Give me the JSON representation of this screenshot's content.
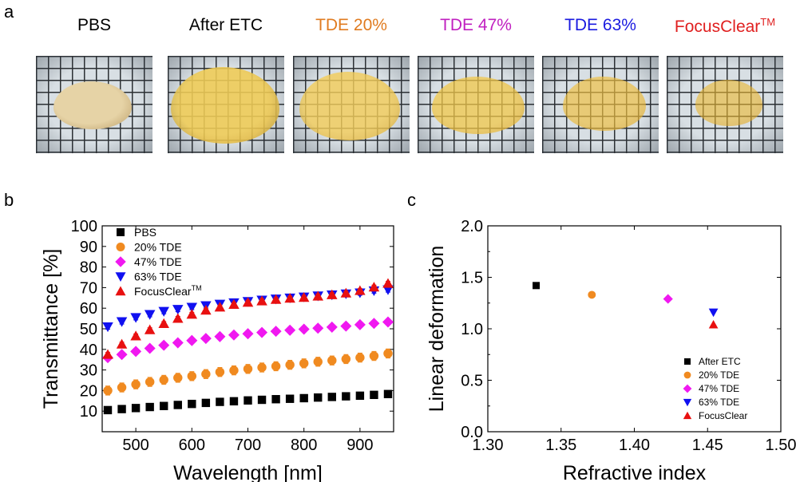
{
  "panels": {
    "a": "a",
    "b": "b",
    "c": "c"
  },
  "photos": [
    {
      "label": "PBS",
      "label_color": "#000000",
      "brain_color": "#e6d3a6",
      "brain_edge": "#b89a64"
    },
    {
      "label": "After ETC",
      "label_color": "#000000",
      "brain_color": "#f0cc55",
      "brain_edge": "#d4a530"
    },
    {
      "label": "TDE 20%",
      "label_color": "#e07b20",
      "brain_color": "#f3cd5a",
      "brain_edge": "#d9a935"
    },
    {
      "label": "TDE 47%",
      "label_color": "#c020c0",
      "brain_color": "#f2c848",
      "brain_edge": "#dca528"
    },
    {
      "label": "TDE 63%",
      "label_color": "#1a1ae0",
      "brain_color": "#f0c040",
      "brain_edge": "#daa020"
    },
    {
      "label": "FocusClear",
      "label_sup": "TM",
      "label_color": "#e02020",
      "brain_color": "#ecb830",
      "brain_edge": "#d99a18"
    }
  ],
  "chart_data": [
    {
      "type": "scatter",
      "xlabel": "Wavelength [nm]",
      "ylabel": "Transmittance [%]",
      "xlim": [
        440,
        960
      ],
      "ylim": [
        0,
        100
      ],
      "xticks": [
        500,
        600,
        700,
        800,
        900
      ],
      "yticks": [
        10,
        20,
        30,
        40,
        50,
        60,
        70,
        80,
        90,
        100
      ],
      "legend_position": "top-left",
      "x": [
        450,
        475,
        500,
        525,
        550,
        575,
        600,
        625,
        650,
        675,
        700,
        725,
        750,
        775,
        800,
        825,
        850,
        875,
        900,
        925,
        950
      ],
      "series": [
        {
          "name": "PBS",
          "color": "#000000",
          "marker": "square",
          "values": [
            10.5,
            11.0,
            11.5,
            12.0,
            12.5,
            13.0,
            13.5,
            14.0,
            14.5,
            14.8,
            15.2,
            15.5,
            15.8,
            16.0,
            16.3,
            16.6,
            16.9,
            17.2,
            17.5,
            17.9,
            18.3
          ]
        },
        {
          "name": "20% TDE",
          "color": "#f08a20",
          "marker": "circle",
          "values": [
            20.0,
            21.5,
            23.0,
            24.2,
            25.2,
            26.2,
            27.0,
            28.0,
            29.0,
            29.8,
            30.5,
            31.2,
            31.8,
            32.5,
            33.2,
            34.0,
            34.6,
            35.3,
            36.0,
            36.8,
            38.0
          ]
        },
        {
          "name": "47% TDE",
          "color": "#f018f0",
          "marker": "diamond",
          "values": [
            36.0,
            37.5,
            39.0,
            40.5,
            42.0,
            43.2,
            44.3,
            45.3,
            46.2,
            47.0,
            47.6,
            48.2,
            48.8,
            49.3,
            49.8,
            50.3,
            50.8,
            51.3,
            52.0,
            52.6,
            53.3
          ]
        },
        {
          "name": "63% TDE",
          "color": "#1010f0",
          "marker": "triangle-down",
          "values": [
            51.0,
            53.5,
            55.5,
            57.0,
            58.5,
            59.5,
            60.5,
            61.3,
            62.0,
            62.7,
            63.3,
            64.0,
            64.5,
            65.0,
            65.5,
            66.0,
            66.5,
            67.0,
            67.5,
            68.5,
            69.0
          ]
        },
        {
          "name": "FocusClear",
          "name_sup": "TM",
          "color": "#e81010",
          "marker": "triangle-up",
          "values": [
            37.5,
            42.5,
            46.5,
            49.5,
            52.5,
            55.0,
            57.0,
            59.0,
            60.5,
            61.8,
            62.8,
            63.5,
            64.2,
            64.8,
            65.2,
            65.8,
            66.5,
            67.3,
            68.5,
            70.2,
            72.0
          ]
        }
      ],
      "error_bars": [
        0.0,
        2.2,
        1.0,
        1.2,
        1.0
      ]
    },
    {
      "type": "scatter",
      "xlabel": "Refractive index",
      "ylabel": "Linear deformation",
      "xlim": [
        1.3,
        1.5
      ],
      "ylim": [
        0.0,
        2.0
      ],
      "xticks": [
        "1.30",
        "1.35",
        "1.40",
        "1.45",
        "1.50"
      ],
      "yticks": [
        "0.0",
        "0.5",
        "1.0",
        "1.5",
        "2.0"
      ],
      "legend_position": "bottom-right",
      "series": [
        {
          "name": "After ETC",
          "color": "#000000",
          "marker": "square",
          "points": [
            [
              1.333,
              1.42
            ]
          ]
        },
        {
          "name": "20% TDE",
          "color": "#f08a20",
          "marker": "circle",
          "points": [
            [
              1.371,
              1.33
            ]
          ]
        },
        {
          "name": "47% TDE",
          "color": "#f018f0",
          "marker": "diamond",
          "points": [
            [
              1.423,
              1.29
            ]
          ]
        },
        {
          "name": "63% TDE",
          "color": "#1010f0",
          "marker": "triangle-down",
          "points": [
            [
              1.454,
              1.16
            ]
          ]
        },
        {
          "name": "FocusClear",
          "color": "#e81010",
          "marker": "triangle-up",
          "points": [
            [
              1.454,
              1.04
            ]
          ]
        }
      ]
    }
  ]
}
